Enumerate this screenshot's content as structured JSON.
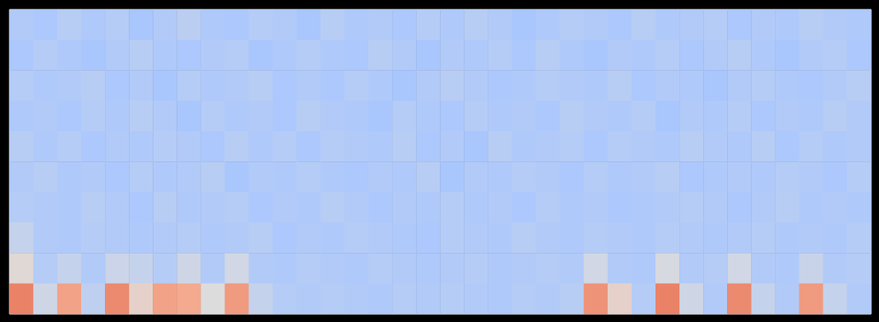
{
  "chart_data": {
    "type": "heatmap",
    "tick_labels": false,
    "zlim": [
      0,
      1
    ],
    "cells": [
      [
        0.36,
        0.34,
        0.38,
        0.35,
        0.37,
        0.33,
        0.36,
        0.39,
        0.35,
        0.34,
        0.37,
        0.36,
        0.33,
        0.38,
        0.35,
        0.36,
        0.34,
        0.37,
        0.35,
        0.38,
        0.36,
        0.33,
        0.35,
        0.37,
        0.36,
        0.34,
        0.38,
        0.35,
        0.36,
        0.37,
        0.34,
        0.36,
        0.35,
        0.38,
        0.36,
        0.35
      ],
      [
        0.34,
        0.37,
        0.35,
        0.33,
        0.36,
        0.38,
        0.35,
        0.34,
        0.36,
        0.37,
        0.33,
        0.35,
        0.37,
        0.35,
        0.34,
        0.38,
        0.36,
        0.33,
        0.36,
        0.35,
        0.37,
        0.34,
        0.38,
        0.35,
        0.33,
        0.36,
        0.35,
        0.37,
        0.34,
        0.36,
        0.38,
        0.35,
        0.33,
        0.36,
        0.37,
        0.34
      ],
      [
        0.37,
        0.35,
        0.36,
        0.38,
        0.34,
        0.36,
        0.33,
        0.37,
        0.35,
        0.36,
        0.38,
        0.34,
        0.36,
        0.34,
        0.37,
        0.35,
        0.33,
        0.36,
        0.38,
        0.36,
        0.34,
        0.35,
        0.37,
        0.36,
        0.35,
        0.38,
        0.34,
        0.36,
        0.35,
        0.33,
        0.36,
        0.37,
        0.35,
        0.34,
        0.36,
        0.38
      ],
      [
        0.35,
        0.36,
        0.34,
        0.37,
        0.35,
        0.38,
        0.36,
        0.33,
        0.37,
        0.35,
        0.36,
        0.34,
        0.38,
        0.36,
        0.35,
        0.33,
        0.37,
        0.35,
        0.34,
        0.37,
        0.35,
        0.36,
        0.34,
        0.38,
        0.36,
        0.35,
        0.37,
        0.33,
        0.36,
        0.35,
        0.37,
        0.34,
        0.36,
        0.35,
        0.38,
        0.36
      ],
      [
        0.38,
        0.35,
        0.37,
        0.34,
        0.36,
        0.35,
        0.37,
        0.36,
        0.34,
        0.38,
        0.35,
        0.37,
        0.34,
        0.37,
        0.36,
        0.35,
        0.38,
        0.34,
        0.36,
        0.33,
        0.38,
        0.35,
        0.36,
        0.37,
        0.34,
        0.37,
        0.36,
        0.35,
        0.38,
        0.36,
        0.35,
        0.38,
        0.34,
        0.37,
        0.35,
        0.36
      ],
      [
        0.36,
        0.38,
        0.35,
        0.36,
        0.34,
        0.37,
        0.35,
        0.36,
        0.38,
        0.33,
        0.36,
        0.35,
        0.37,
        0.35,
        0.34,
        0.36,
        0.35,
        0.38,
        0.33,
        0.36,
        0.35,
        0.37,
        0.36,
        0.34,
        0.37,
        0.35,
        0.36,
        0.38,
        0.34,
        0.35,
        0.36,
        0.35,
        0.37,
        0.36,
        0.34,
        0.37
      ],
      [
        0.37,
        0.36,
        0.35,
        0.38,
        0.36,
        0.34,
        0.38,
        0.35,
        0.36,
        0.37,
        0.34,
        0.36,
        0.35,
        0.38,
        0.36,
        0.34,
        0.36,
        0.35,
        0.37,
        0.35,
        0.36,
        0.34,
        0.37,
        0.35,
        0.36,
        0.34,
        0.35,
        0.36,
        0.37,
        0.36,
        0.34,
        0.36,
        0.38,
        0.35,
        0.36,
        0.35
      ],
      [
        0.42,
        0.36,
        0.35,
        0.37,
        0.36,
        0.35,
        0.36,
        0.37,
        0.35,
        0.36,
        0.38,
        0.34,
        0.36,
        0.35,
        0.37,
        0.36,
        0.35,
        0.34,
        0.37,
        0.36,
        0.35,
        0.38,
        0.36,
        0.35,
        0.37,
        0.36,
        0.35,
        0.37,
        0.36,
        0.35,
        0.36,
        0.37,
        0.35,
        0.36,
        0.35,
        0.37
      ],
      [
        0.52,
        0.37,
        0.42,
        0.36,
        0.44,
        0.42,
        0.37,
        0.45,
        0.36,
        0.46,
        0.36,
        0.35,
        0.37,
        0.36,
        0.35,
        0.37,
        0.36,
        0.35,
        0.36,
        0.37,
        0.35,
        0.36,
        0.37,
        0.36,
        0.46,
        0.36,
        0.35,
        0.48,
        0.36,
        0.37,
        0.46,
        0.36,
        0.35,
        0.43,
        0.36,
        0.37
      ],
      [
        0.8,
        0.45,
        0.72,
        0.4,
        0.78,
        0.55,
        0.72,
        0.7,
        0.5,
        0.74,
        0.42,
        0.37,
        0.36,
        0.37,
        0.36,
        0.35,
        0.37,
        0.36,
        0.37,
        0.36,
        0.35,
        0.37,
        0.36,
        0.38,
        0.76,
        0.55,
        0.37,
        0.8,
        0.45,
        0.36,
        0.78,
        0.42,
        0.36,
        0.74,
        0.42,
        0.36
      ]
    ]
  }
}
